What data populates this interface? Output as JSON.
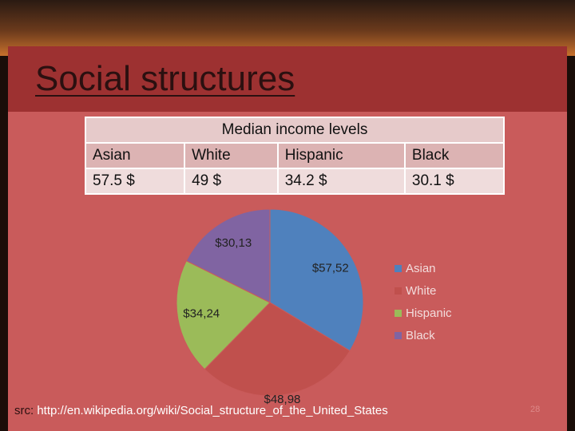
{
  "slide": {
    "title": "Social structures",
    "source_label": "src:",
    "source_url": "http://en.wikipedia.org/wiki/Social_structure_of_the_United_States",
    "page_number": "28"
  },
  "table": {
    "title": "Median income levels",
    "header": [
      "Asian",
      "White",
      "Hispanic",
      "Black"
    ],
    "rows": [
      [
        "57.5 $",
        "49 $",
        "34.2 $",
        "30.1 $"
      ]
    ]
  },
  "chart_data": {
    "type": "pie",
    "categories": [
      "Asian",
      "White",
      "Hispanic",
      "Black"
    ],
    "values": [
      57.52,
      48.98,
      34.24,
      30.13
    ],
    "value_labels": [
      "$57,52",
      "$48,98",
      "$34,24",
      "$30,13"
    ],
    "colors": [
      "#4f81bd",
      "#c0504d",
      "#9bbb59",
      "#8064a2"
    ],
    "legend": "right"
  }
}
